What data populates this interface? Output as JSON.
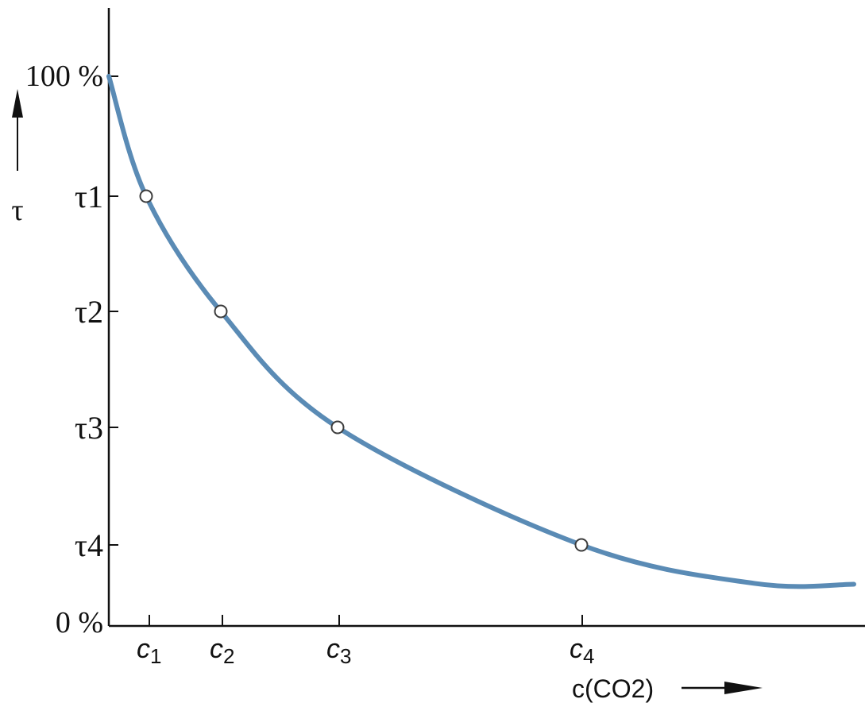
{
  "chart_data": {
    "type": "line",
    "title": "",
    "xlabel": "c(CO2)",
    "ylabel": "τ",
    "y_ticks": [
      {
        "label": "100 %",
        "value": 100
      },
      {
        "label": "τ1",
        "value": 80
      },
      {
        "label": "τ2",
        "value": 60
      },
      {
        "label": "τ3",
        "value": 40
      },
      {
        "label": "τ4",
        "value": 20
      },
      {
        "label": "0 %",
        "value": 0
      }
    ],
    "x_ticks": [
      {
        "base": "c",
        "sub": "1",
        "value": 1
      },
      {
        "base": "c",
        "sub": "2",
        "value": 2
      },
      {
        "base": "c",
        "sub": "3",
        "value": 3
      },
      {
        "base": "c",
        "sub": "4",
        "value": 4
      }
    ],
    "series": [
      {
        "color": "#5a8bb5",
        "curve": [
          [
            0,
            100
          ],
          [
            1,
            80
          ],
          [
            2,
            60
          ],
          [
            3,
            40
          ],
          [
            4,
            20
          ],
          [
            5.5,
            10.5
          ],
          [
            6.2,
            10.3
          ]
        ],
        "markers": [
          [
            1,
            80
          ],
          [
            2,
            60
          ],
          [
            3,
            40
          ],
          [
            4,
            20
          ]
        ]
      }
    ],
    "grid": false,
    "legend": "none"
  }
}
